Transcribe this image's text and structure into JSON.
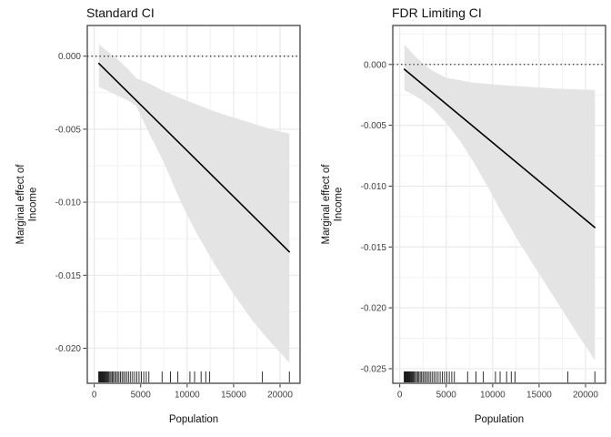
{
  "page": {
    "background": "#ffffff"
  },
  "colors": {
    "ribbon": "#e4e4e4",
    "grid_major": "#e9e9e9",
    "grid_minor": "#f3f3f3",
    "panel_border": "#333333",
    "line": "#000000",
    "zero_line": "#262626",
    "tick_mark": "#333333",
    "tick_text": "#404040",
    "title_text": "#111111",
    "rug": "#1a1a1a"
  },
  "population_rug": [
    480,
    560,
    610,
    660,
    710,
    760,
    820,
    880,
    950,
    1020,
    1100,
    1180,
    1260,
    1350,
    1450,
    1560,
    1680,
    1800,
    1930,
    2060,
    2200,
    2350,
    2500,
    2660,
    2820,
    2990,
    3160,
    3340,
    3530,
    3720,
    3920,
    4130,
    4350,
    4580,
    4820,
    5070,
    5330,
    5600,
    5880,
    7300,
    8200,
    9000,
    10300,
    10800,
    11500,
    12000,
    12400,
    18100,
    21000
  ],
  "chart_data": [
    {
      "type": "line",
      "title": "Standard CI",
      "xlabel": "Population",
      "ylabel": "Marginal effect of Income",
      "ylabel_lines": [
        "Marginal effect of",
        "Income"
      ],
      "legend_position": "none",
      "grid": true,
      "xlim": [
        -750,
        22150
      ],
      "ylim": [
        -0.0224,
        0.0021
      ],
      "x_ticks": [
        0,
        5000,
        10000,
        15000,
        20000
      ],
      "x_tick_labels": [
        "0",
        "5000",
        "10000",
        "15000",
        "20000"
      ],
      "y_ticks": [
        0,
        -0.005,
        -0.01,
        -0.015,
        -0.02
      ],
      "y_tick_labels": [
        "0.000",
        "-0.005",
        "-0.010",
        "-0.015",
        "-0.020"
      ],
      "zero_reference_line": 0,
      "line": {
        "x": [
          500,
          21000
        ],
        "y": [
          -0.0005,
          -0.0134
        ]
      },
      "ribbon": {
        "x": [
          500,
          1500,
          2500,
          3500,
          4500,
          6000,
          7500,
          9400,
          11000,
          13000,
          15000,
          17000,
          19000,
          21000
        ],
        "upper": [
          0.0008,
          0.0003,
          -0.0002,
          -0.0008,
          -0.0015,
          -0.0019,
          -0.0024,
          -0.0029,
          -0.0033,
          -0.0038,
          -0.0042,
          -0.0046,
          -0.005,
          -0.0053
        ],
        "lower": [
          -0.0021,
          -0.0024,
          -0.0027,
          -0.003,
          -0.0034,
          -0.0054,
          -0.0073,
          -0.0101,
          -0.0121,
          -0.0143,
          -0.0163,
          -0.0181,
          -0.0196,
          -0.021
        ]
      }
    },
    {
      "type": "line",
      "title": "FDR Limiting CI",
      "xlabel": "Population",
      "ylabel": "Marginal effect of Income",
      "ylabel_lines": [
        "Marginal effect of",
        "Income"
      ],
      "legend_position": "none",
      "grid": true,
      "xlim": [
        -750,
        22150
      ],
      "ylim": [
        -0.0262,
        0.0032
      ],
      "x_ticks": [
        0,
        5000,
        10000,
        15000,
        20000
      ],
      "x_tick_labels": [
        "0",
        "5000",
        "10000",
        "15000",
        "20000"
      ],
      "y_ticks": [
        0,
        -0.005,
        -0.01,
        -0.015,
        -0.02,
        -0.025
      ],
      "y_tick_labels": [
        "0.000",
        "-0.005",
        "-0.010",
        "-0.015",
        "-0.020",
        "-0.025"
      ],
      "zero_reference_line": 0,
      "line": {
        "x": [
          500,
          21000
        ],
        "y": [
          -0.0004,
          -0.0134
        ]
      },
      "ribbon": {
        "x": [
          500,
          1500,
          2500,
          3500,
          5000,
          6500,
          8000,
          9500,
          11000,
          13000,
          15000,
          17000,
          19000,
          21000
        ],
        "upper": [
          0.00165,
          0.0008,
          0.0001,
          -0.0005,
          -0.0011,
          -0.0013,
          -0.0015,
          -0.0016,
          -0.0017,
          -0.0018,
          -0.0019,
          -0.002,
          -0.00205,
          -0.0021
        ],
        "lower": [
          -0.0021,
          -0.0025,
          -0.003,
          -0.0036,
          -0.0048,
          -0.0063,
          -0.0081,
          -0.0101,
          -0.0122,
          -0.0148,
          -0.0172,
          -0.0196,
          -0.022,
          -0.0243
        ]
      }
    }
  ]
}
